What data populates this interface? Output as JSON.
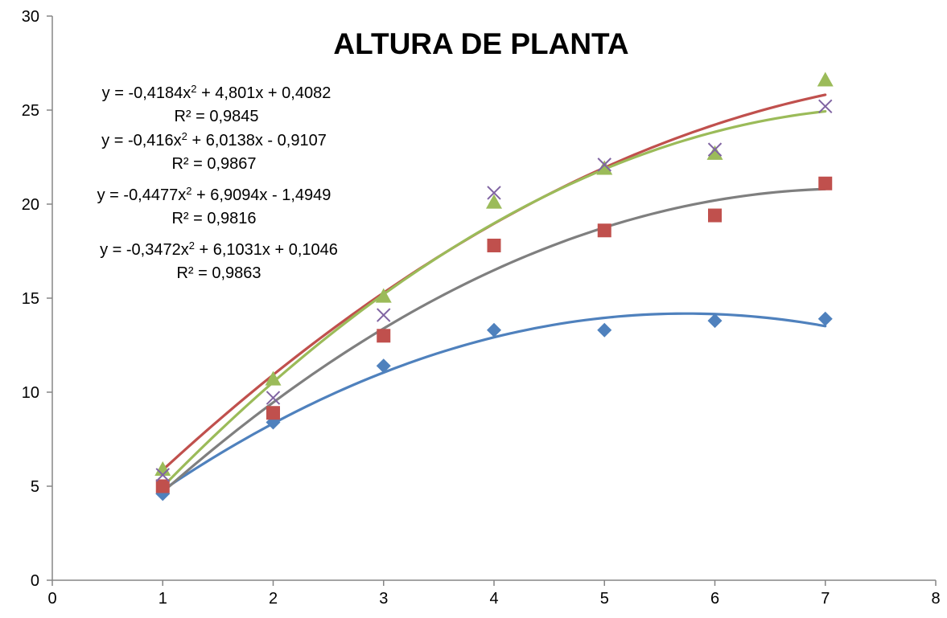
{
  "chart_data": {
    "type": "scatter",
    "title": "ALTURA DE PLANTA",
    "xlabel": "",
    "ylabel": "",
    "xlim": [
      0,
      8
    ],
    "ylim": [
      0,
      30
    ],
    "xticks": [
      0,
      1,
      2,
      3,
      4,
      5,
      6,
      7,
      8
    ],
    "yticks": [
      0,
      5,
      10,
      15,
      20,
      25,
      30
    ],
    "grid": false,
    "legend": "none",
    "series": [
      {
        "marker": "diamond",
        "color": "#4f81bd",
        "x": [
          1,
          2,
          3,
          4,
          5,
          6,
          7
        ],
        "y": [
          4.6,
          8.4,
          11.4,
          13.3,
          13.3,
          13.8,
          13.9
        ],
        "trend": {
          "a": -0.4184,
          "b": 4.801,
          "c": 0.4082
        }
      },
      {
        "marker": "square",
        "color": "#c0504d",
        "x": [
          1,
          2,
          3,
          4,
          5,
          6,
          7
        ],
        "y": [
          5.0,
          8.9,
          13.0,
          17.8,
          18.6,
          19.4,
          21.1
        ],
        "trend": {
          "a": -0.3472,
          "b": 6.1031,
          "c": 0.1046
        }
      },
      {
        "marker": "triangle",
        "color": "#9bbb59",
        "x": [
          1,
          2,
          3,
          4,
          5,
          6,
          7
        ],
        "y": [
          5.9,
          10.7,
          15.1,
          20.1,
          21.9,
          22.7,
          26.6
        ],
        "trend": {
          "a": -0.4477,
          "b": 6.9094,
          "c": -1.4949
        }
      },
      {
        "marker": "x",
        "color": "#8064a2",
        "x": [
          1,
          2,
          3,
          4,
          5,
          6,
          7
        ],
        "y": [
          5.6,
          9.7,
          14.1,
          20.6,
          22.1,
          22.9,
          25.2
        ],
        "trend": {
          "a": -0.416,
          "b": 6.0138,
          "c": -0.9107,
          "color": "#7f7f7f"
        }
      }
    ],
    "annotations": [
      {
        "eq_prefix": "y = -0,4184x",
        "eq_suffix": " + 4,801x + 0,4082",
        "r2": "R² = 0,9845"
      },
      {
        "eq_prefix": "y = -0,416x",
        "eq_suffix": " + 6,0138x - 0,9107",
        "r2": "R² = 0,9867"
      },
      {
        "eq_prefix": "y = -0,4477x",
        "eq_suffix": " + 6,9094x - 1,4949",
        "r2": "R² = 0,9816"
      },
      {
        "eq_prefix": "y = -0,3472x",
        "eq_suffix": " + 6,1031x + 0,1046",
        "r2": "R² = 0,9863"
      }
    ]
  }
}
